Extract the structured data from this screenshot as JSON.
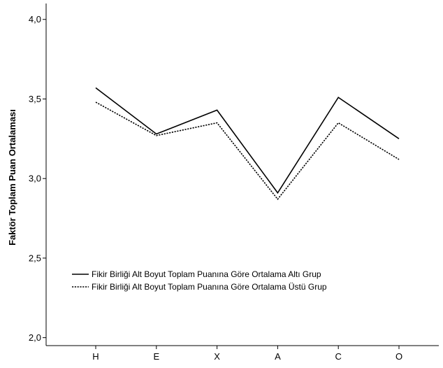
{
  "chart_data": {
    "type": "line",
    "categories": [
      "H",
      "E",
      "X",
      "A",
      "C",
      "O"
    ],
    "ylabel": "Faktör Toplam Puan Ortalaması",
    "xlabel": "",
    "ylim": [
      1.95,
      4.1
    ],
    "yticks": [
      2.0,
      2.5,
      3.0,
      3.5,
      4.0
    ],
    "ytick_labels": [
      "2,0",
      "2,5",
      "3,0",
      "3,5",
      "4,0"
    ],
    "grid": false,
    "legend_position": "lower-left",
    "series": [
      {
        "name": "Fikir Birliği Alt Boyut Toplam Puanına Göre Ortalama Altı Grup",
        "style": "solid",
        "color": "#000000",
        "values": [
          3.57,
          3.28,
          3.43,
          2.91,
          3.51,
          3.25
        ]
      },
      {
        "name": "Fikir Birliği Alt Boyut Toplam Puanına Göre Ortalama Üstü Grup",
        "style": "dotted",
        "color": "#000000",
        "values": [
          3.48,
          3.27,
          3.35,
          2.87,
          3.35,
          3.12
        ]
      }
    ]
  }
}
